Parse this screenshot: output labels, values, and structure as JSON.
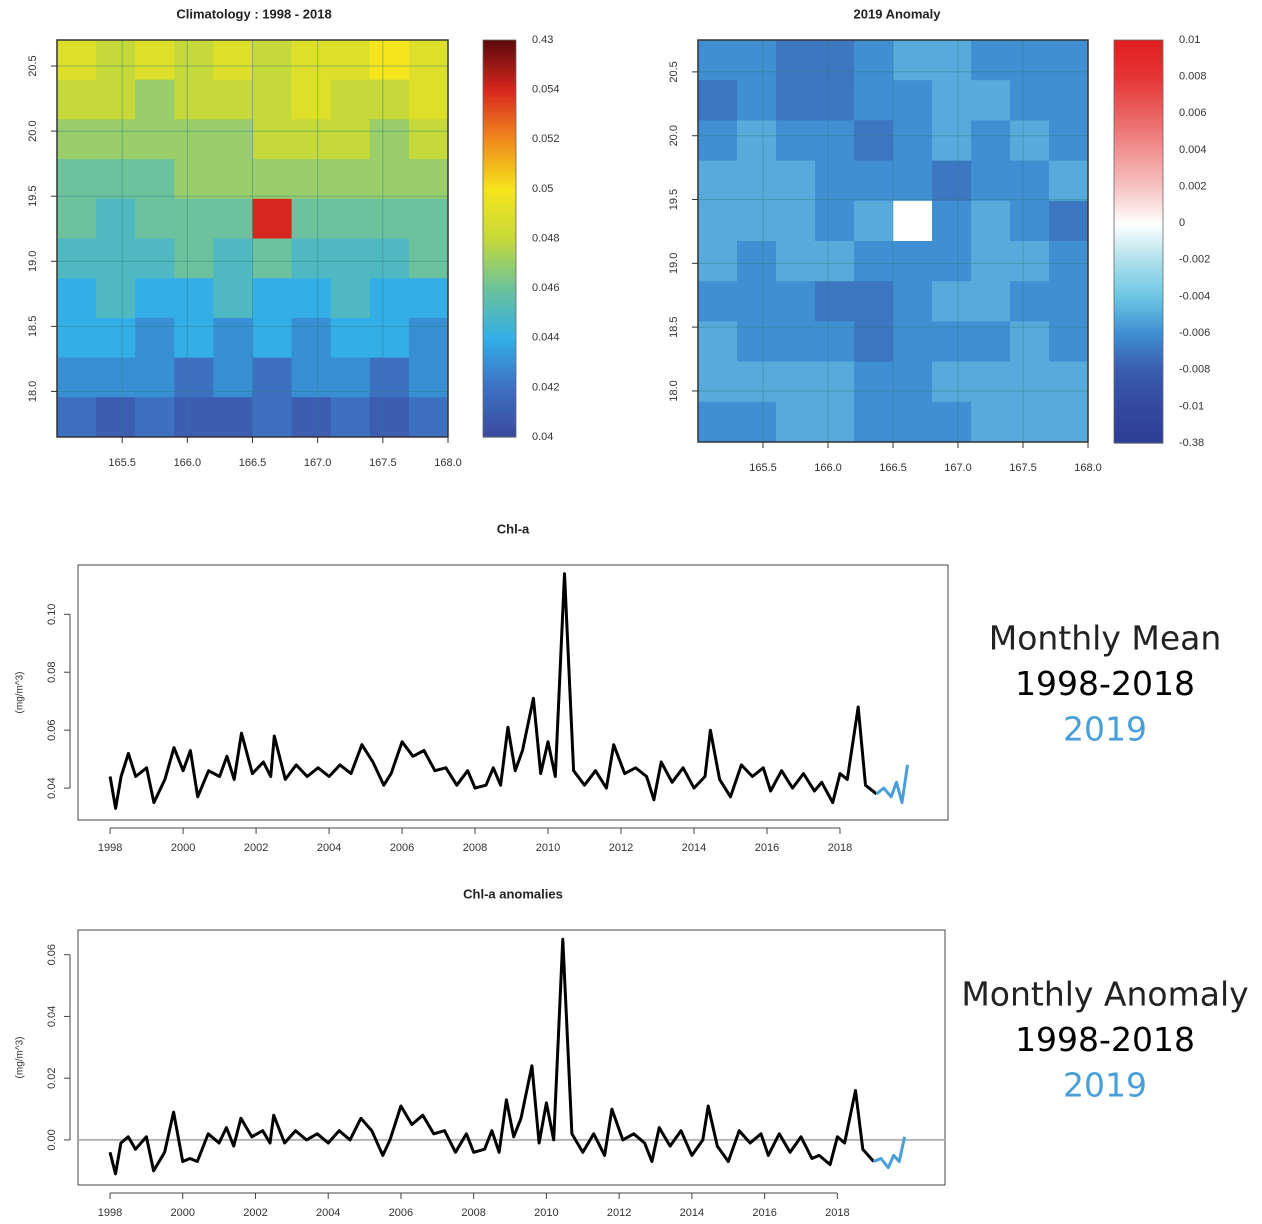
{
  "chart_data": [
    {
      "type": "heatmap",
      "title": "Climatology : 1998 - 2018",
      "xlim": [
        165,
        168
      ],
      "xticks": [
        165.5,
        {
          "value": 166,
          "label": "166.0"
        },
        166.5,
        {
          "value": 167,
          "label": "167.0"
        },
        167.5,
        {
          "value": 168,
          "label": "168.0"
        }
      ],
      "ylim": [
        17.65,
        20.7
      ],
      "yticks": [
        {
          "value": 18,
          "label": "18.0"
        },
        18.5,
        {
          "value": 19,
          "label": "19.0"
        },
        19.5,
        {
          "value": 20,
          "label": "20.0"
        },
        20.5
      ],
      "grid": true,
      "z": [
        [
          0.049,
          0.048,
          0.049,
          0.048,
          0.049,
          0.048,
          0.049,
          0.049,
          0.05,
          0.049
        ],
        [
          0.048,
          0.048,
          0.047,
          0.048,
          0.048,
          0.048,
          0.049,
          0.048,
          0.048,
          0.049
        ],
        [
          0.047,
          0.047,
          0.047,
          0.047,
          0.047,
          0.048,
          0.048,
          0.048,
          0.047,
          0.048
        ],
        [
          0.046,
          0.046,
          0.046,
          0.047,
          0.047,
          0.047,
          0.047,
          0.047,
          0.047,
          0.047
        ],
        [
          0.046,
          0.045,
          0.046,
          0.046,
          0.046,
          0.058,
          0.046,
          0.046,
          0.046,
          0.046
        ],
        [
          0.045,
          0.045,
          0.045,
          0.046,
          0.045,
          0.046,
          0.045,
          0.045,
          0.045,
          0.046
        ],
        [
          0.044,
          0.045,
          0.044,
          0.044,
          0.045,
          0.044,
          0.044,
          0.045,
          0.044,
          0.044
        ],
        [
          0.044,
          0.044,
          0.043,
          0.044,
          0.043,
          0.044,
          0.043,
          0.044,
          0.044,
          0.043
        ],
        [
          0.043,
          0.043,
          0.043,
          0.042,
          0.043,
          0.042,
          0.043,
          0.043,
          0.042,
          0.043
        ],
        [
          0.042,
          0.041,
          0.042,
          0.041,
          0.041,
          0.042,
          0.041,
          0.042,
          0.041,
          0.042
        ]
      ],
      "colorbar": {
        "ticks": [
          0.04,
          0.042,
          0.044,
          0.046,
          0.048,
          0.05,
          0.052,
          0.054,
          0.43
        ],
        "colors": [
          "#3a4a9e",
          "#3e70c2",
          "#33aee6",
          "#6cc29c",
          "#c6d93a",
          "#f5e51c",
          "#f08a1e",
          "#d7261e",
          "#5c0a0a"
        ]
      }
    },
    {
      "type": "heatmap",
      "title": "2019 Anomaly",
      "xlim": [
        165,
        168
      ],
      "xticks": [
        165.5,
        {
          "value": 166,
          "label": "166.0"
        },
        166.5,
        {
          "value": 167,
          "label": "167.0"
        },
        167.5,
        {
          "value": 168,
          "label": "168.0"
        }
      ],
      "ylim": [
        17.6,
        20.75
      ],
      "yticks": [
        {
          "value": 18,
          "label": "18.0"
        },
        18.5,
        {
          "value": 19,
          "label": "19.0"
        },
        19.5,
        {
          "value": 20,
          "label": "20.0"
        },
        20.5
      ],
      "grid": true,
      "z": [
        [
          -0.006,
          -0.006,
          -0.007,
          -0.007,
          -0.006,
          -0.005,
          -0.005,
          -0.006,
          -0.006,
          -0.006
        ],
        [
          -0.007,
          -0.006,
          -0.007,
          -0.007,
          -0.006,
          -0.006,
          -0.005,
          -0.005,
          -0.006,
          -0.006
        ],
        [
          -0.006,
          -0.005,
          -0.006,
          -0.006,
          -0.007,
          -0.006,
          -0.005,
          -0.006,
          -0.005,
          -0.006
        ],
        [
          -0.005,
          -0.005,
          -0.005,
          -0.006,
          -0.006,
          -0.006,
          -0.007,
          -0.006,
          -0.006,
          -0.005
        ],
        [
          -0.005,
          -0.005,
          -0.005,
          -0.006,
          -0.005,
          0,
          -0.006,
          -0.005,
          -0.006,
          -0.007
        ],
        [
          -0.005,
          -0.006,
          -0.005,
          -0.005,
          -0.006,
          -0.006,
          -0.006,
          -0.005,
          -0.005,
          -0.006
        ],
        [
          -0.006,
          -0.006,
          -0.006,
          -0.007,
          -0.007,
          -0.006,
          -0.005,
          -0.005,
          -0.006,
          -0.006
        ],
        [
          -0.005,
          -0.006,
          -0.006,
          -0.006,
          -0.007,
          -0.006,
          -0.006,
          -0.006,
          -0.005,
          -0.006
        ],
        [
          -0.005,
          -0.005,
          -0.005,
          -0.005,
          -0.006,
          -0.006,
          -0.005,
          -0.005,
          -0.005,
          -0.005
        ],
        [
          -0.006,
          -0.006,
          -0.005,
          -0.005,
          -0.006,
          -0.006,
          -0.006,
          -0.005,
          -0.005,
          -0.005
        ]
      ],
      "colorbar": {
        "ticks": [
          -0.38,
          -0.01,
          -0.008,
          -0.006,
          -0.004,
          -0.002,
          0,
          0.002,
          0.004,
          0.006,
          0.008,
          0.01
        ],
        "colors": [
          "#2c3e94",
          "#34489f",
          "#3a5cb0",
          "#3f8fd2",
          "#6cc6e2",
          "#b0e0ec",
          "#ffffff",
          "#f7c3c3",
          "#f19292",
          "#ea6161",
          "#e53535",
          "#e01f1f"
        ]
      }
    },
    {
      "type": "line",
      "title": "Chl-a",
      "ylabel": "(mg/m^3)",
      "legend_title": "Monthly Mean",
      "xlim": [
        1997.12,
        2020.96
      ],
      "xticks": [
        1998,
        2000,
        2002,
        2004,
        2006,
        2008,
        2010,
        2012,
        2014,
        2016,
        2018
      ],
      "ylim": [
        0.029,
        0.117
      ],
      "yticks": [
        0.04,
        0.06,
        0.08,
        {
          "value": 0.1,
          "label": "0.10"
        }
      ],
      "series": [
        {
          "name": "1998-2018",
          "color": "#000000",
          "x": [
            1998.0,
            1998.15,
            1998.3,
            1998.5,
            1998.7,
            1999.0,
            1999.2,
            1999.5,
            1999.75,
            2000.0,
            2000.2,
            2000.4,
            2000.7,
            2001.0,
            2001.2,
            2001.4,
            2001.6,
            2001.9,
            2002.2,
            2002.4,
            2002.5,
            2002.8,
            2003.1,
            2003.4,
            2003.7,
            2004.0,
            2004.3,
            2004.6,
            2004.9,
            2005.2,
            2005.5,
            2005.7,
            2006.0,
            2006.3,
            2006.6,
            2006.9,
            2007.2,
            2007.5,
            2007.8,
            2008.0,
            2008.3,
            2008.5,
            2008.7,
            2008.9,
            2009.1,
            2009.3,
            2009.6,
            2009.8,
            2010.0,
            2010.2,
            2010.45,
            2010.7,
            2011.0,
            2011.3,
            2011.6,
            2011.8,
            2012.1,
            2012.4,
            2012.7,
            2012.9,
            2013.1,
            2013.4,
            2013.7,
            2014.0,
            2014.3,
            2014.45,
            2014.7,
            2015.0,
            2015.3,
            2015.6,
            2015.9,
            2016.1,
            2016.4,
            2016.7,
            2017.0,
            2017.3,
            2017.5,
            2017.8,
            2018.0,
            2018.2,
            2018.5,
            2018.7,
            2019.0
          ],
          "values": [
            0.044,
            0.033,
            0.044,
            0.052,
            0.044,
            0.047,
            0.035,
            0.043,
            0.054,
            0.046,
            0.053,
            0.037,
            0.046,
            0.044,
            0.051,
            0.043,
            0.059,
            0.045,
            0.049,
            0.044,
            0.058,
            0.043,
            0.048,
            0.044,
            0.047,
            0.044,
            0.048,
            0.045,
            0.055,
            0.049,
            0.041,
            0.045,
            0.056,
            0.051,
            0.053,
            0.046,
            0.047,
            0.041,
            0.046,
            0.04,
            0.041,
            0.047,
            0.041,
            0.061,
            0.046,
            0.053,
            0.071,
            0.045,
            0.056,
            0.044,
            0.114,
            0.046,
            0.041,
            0.046,
            0.04,
            0.055,
            0.045,
            0.047,
            0.044,
            0.036,
            0.049,
            0.042,
            0.047,
            0.04,
            0.044,
            0.06,
            0.043,
            0.037,
            0.048,
            0.044,
            0.047,
            0.039,
            0.046,
            0.04,
            0.045,
            0.039,
            0.042,
            0.035,
            0.045,
            0.043,
            0.068,
            0.041,
            0.038
          ]
        },
        {
          "name": "2019",
          "color": "#4a9fd8",
          "x": [
            2019.0,
            2019.2,
            2019.4,
            2019.55,
            2019.7,
            2019.85
          ],
          "values": [
            0.038,
            0.04,
            0.037,
            0.042,
            0.035,
            0.048
          ]
        }
      ]
    },
    {
      "type": "line",
      "title": "Chl-a anomalies",
      "ylabel": "(mg/m^3)",
      "legend_title": "Monthly Anomaly",
      "xlim": [
        1997.12,
        2020.96
      ],
      "xticks": [
        1998,
        2000,
        2002,
        2004,
        2006,
        2008,
        2010,
        2012,
        2014,
        2016,
        2018
      ],
      "ylim": [
        -0.0146,
        0.068
      ],
      "yticks": [
        {
          "value": 0,
          "label": "0.00"
        },
        0.02,
        0.04,
        0.06
      ],
      "hline": 0,
      "series": [
        {
          "name": "1998-2018",
          "color": "#000000",
          "x": [
            1998.0,
            1998.15,
            1998.3,
            1998.5,
            1998.7,
            1999.0,
            1999.2,
            1999.5,
            1999.75,
            2000.0,
            2000.2,
            2000.4,
            2000.7,
            2001.0,
            2001.2,
            2001.4,
            2001.6,
            2001.9,
            2002.2,
            2002.4,
            2002.5,
            2002.8,
            2003.1,
            2003.4,
            2003.7,
            2004.0,
            2004.3,
            2004.6,
            2004.9,
            2005.2,
            2005.5,
            2005.7,
            2006.0,
            2006.3,
            2006.6,
            2006.9,
            2007.2,
            2007.5,
            2007.8,
            2008.0,
            2008.3,
            2008.5,
            2008.7,
            2008.9,
            2009.1,
            2009.3,
            2009.6,
            2009.8,
            2010.0,
            2010.2,
            2010.45,
            2010.7,
            2011.0,
            2011.3,
            2011.6,
            2011.8,
            2012.1,
            2012.4,
            2012.7,
            2012.9,
            2013.1,
            2013.4,
            2013.7,
            2014.0,
            2014.3,
            2014.45,
            2014.7,
            2015.0,
            2015.3,
            2015.6,
            2015.9,
            2016.1,
            2016.4,
            2016.7,
            2017.0,
            2017.3,
            2017.5,
            2017.8,
            2018.0,
            2018.2,
            2018.5,
            2018.7,
            2019.0
          ],
          "values": [
            -0.004,
            -0.011,
            -0.001,
            0.001,
            -0.003,
            0.001,
            -0.01,
            -0.004,
            0.009,
            -0.007,
            -0.006,
            -0.007,
            0.002,
            -0.001,
            0.004,
            -0.002,
            0.007,
            0.001,
            0.003,
            -0.001,
            0.008,
            -0.001,
            0.003,
            0,
            0.002,
            -0.001,
            0.003,
            0,
            0.007,
            0.003,
            -0.005,
            0,
            0.011,
            0.005,
            0.008,
            0.002,
            0.003,
            -0.004,
            0.002,
            -0.004,
            -0.003,
            0.003,
            -0.004,
            0.013,
            0.001,
            0.007,
            0.024,
            -0.001,
            0.012,
            0,
            0.065,
            0.002,
            -0.004,
            0.002,
            -0.005,
            0.01,
            0,
            0.002,
            -0.001,
            -0.007,
            0.004,
            -0.002,
            0.003,
            -0.005,
            0,
            0.011,
            -0.002,
            -0.007,
            0.003,
            -0.001,
            0.002,
            -0.005,
            0.002,
            -0.004,
            0.001,
            -0.006,
            -0.005,
            -0.008,
            0.001,
            -0.001,
            0.016,
            -0.003,
            -0.007
          ]
        },
        {
          "name": "2019",
          "color": "#4a9fd8",
          "x": [
            2019.0,
            2019.2,
            2019.4,
            2019.55,
            2019.7,
            2019.85
          ],
          "values": [
            -0.007,
            -0.006,
            -0.009,
            -0.005,
            -0.007,
            0.001
          ]
        }
      ]
    }
  ]
}
